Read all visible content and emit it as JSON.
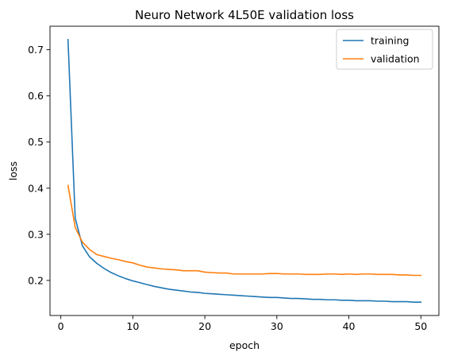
{
  "chart_data": {
    "type": "line",
    "title": "Neuro Network 4L50E validation loss",
    "xlabel": "epoch",
    "ylabel": "loss",
    "xlim": [
      -1.5,
      52.5
    ],
    "ylim": [
      0.124,
      0.751
    ],
    "xticks": [
      0,
      10,
      20,
      30,
      40,
      50
    ],
    "yticks": [
      0.2,
      0.3,
      0.4,
      0.5,
      0.6,
      0.7
    ],
    "grid": false,
    "legend_position": "top-right",
    "x": [
      1,
      2,
      3,
      4,
      5,
      6,
      7,
      8,
      9,
      10,
      11,
      12,
      13,
      14,
      15,
      16,
      17,
      18,
      19,
      20,
      21,
      22,
      23,
      24,
      25,
      26,
      27,
      28,
      29,
      30,
      31,
      32,
      33,
      34,
      35,
      36,
      37,
      38,
      39,
      40,
      41,
      42,
      43,
      44,
      45,
      46,
      47,
      48,
      49,
      50
    ],
    "series": [
      {
        "name": "training",
        "color": "#1f77b4",
        "values": [
          0.722,
          0.335,
          0.275,
          0.251,
          0.237,
          0.226,
          0.217,
          0.21,
          0.204,
          0.199,
          0.195,
          0.191,
          0.187,
          0.184,
          0.181,
          0.179,
          0.177,
          0.175,
          0.174,
          0.172,
          0.171,
          0.17,
          0.169,
          0.168,
          0.167,
          0.166,
          0.165,
          0.164,
          0.163,
          0.163,
          0.162,
          0.161,
          0.161,
          0.16,
          0.159,
          0.159,
          0.158,
          0.158,
          0.157,
          0.157,
          0.156,
          0.156,
          0.156,
          0.155,
          0.155,
          0.154,
          0.154,
          0.154,
          0.153,
          0.153
        ]
      },
      {
        "name": "validation",
        "color": "#ff7f0e",
        "values": [
          0.406,
          0.315,
          0.283,
          0.267,
          0.256,
          0.252,
          0.248,
          0.245,
          0.241,
          0.238,
          0.233,
          0.229,
          0.227,
          0.225,
          0.224,
          0.223,
          0.221,
          0.221,
          0.221,
          0.218,
          0.217,
          0.216,
          0.216,
          0.214,
          0.214,
          0.214,
          0.214,
          0.214,
          0.215,
          0.215,
          0.214,
          0.214,
          0.214,
          0.213,
          0.213,
          0.213,
          0.214,
          0.214,
          0.213,
          0.214,
          0.213,
          0.214,
          0.214,
          0.213,
          0.213,
          0.213,
          0.212,
          0.212,
          0.211,
          0.211
        ]
      }
    ]
  }
}
